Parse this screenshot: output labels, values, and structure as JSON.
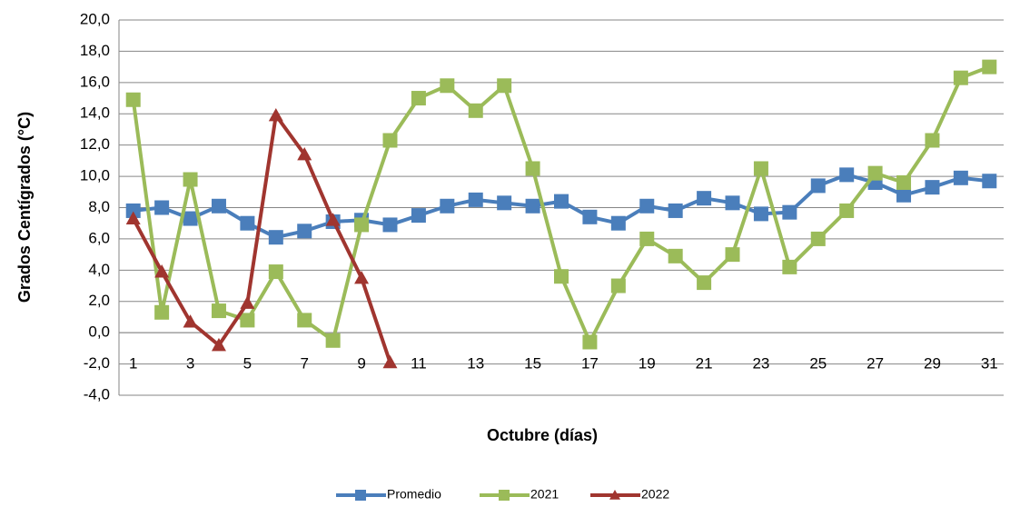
{
  "chart_data": {
    "type": "line",
    "y_label": "Grados Centígrados (°C)",
    "x_label": "Octubre (días)",
    "x": [
      1,
      2,
      3,
      4,
      5,
      6,
      7,
      8,
      9,
      10,
      11,
      12,
      13,
      14,
      15,
      16,
      17,
      18,
      19,
      20,
      21,
      22,
      23,
      24,
      25,
      26,
      27,
      28,
      29,
      30,
      31
    ],
    "xlim": [
      0.5,
      31.5
    ],
    "xticks": [
      1,
      3,
      5,
      7,
      9,
      11,
      13,
      15,
      17,
      19,
      21,
      23,
      25,
      27,
      29,
      31
    ],
    "ylim": [
      -4,
      20
    ],
    "yticks": [
      {
        "value": -4,
        "label": "-4,0"
      },
      {
        "value": -2,
        "label": "-2,0"
      },
      {
        "value": 0,
        "label": "0,0"
      },
      {
        "value": 2,
        "label": "2,0"
      },
      {
        "value": 4,
        "label": "4,0"
      },
      {
        "value": 6,
        "label": "6,0"
      },
      {
        "value": 8,
        "label": "8,0"
      },
      {
        "value": 10,
        "label": "10,0"
      },
      {
        "value": 12,
        "label": "12,0"
      },
      {
        "value": 14,
        "label": "14,0"
      },
      {
        "value": 16,
        "label": "16,0"
      },
      {
        "value": 18,
        "label": "18,0"
      },
      {
        "value": 20,
        "label": "20,0"
      }
    ],
    "grid": true,
    "legend": "bottom",
    "series": [
      {
        "name": "Promedio",
        "color": "#4a7ebb",
        "marker": "square",
        "values": [
          7.8,
          8.0,
          7.3,
          8.1,
          7.0,
          6.1,
          6.5,
          7.1,
          7.2,
          6.9,
          7.5,
          8.1,
          8.5,
          8.3,
          8.1,
          8.4,
          7.4,
          7.0,
          8.1,
          7.8,
          8.6,
          8.3,
          7.6,
          7.7,
          9.4,
          10.1,
          9.6,
          8.8,
          9.3,
          9.9,
          9.7
        ]
      },
      {
        "name": "2021",
        "color": "#9bbb59",
        "marker": "square",
        "values": [
          14.9,
          1.3,
          9.8,
          1.4,
          0.8,
          3.9,
          0.8,
          -0.5,
          6.9,
          12.3,
          15.0,
          15.8,
          14.2,
          15.8,
          10.5,
          3.6,
          -0.6,
          3.0,
          6.0,
          4.9,
          3.2,
          5.0,
          10.5,
          4.2,
          6.0,
          7.8,
          10.2,
          9.6,
          12.3,
          16.3,
          17.0
        ]
      },
      {
        "name": "2022",
        "color": "#a0352f",
        "marker": "triangle",
        "values": [
          7.3,
          3.9,
          0.7,
          -0.8,
          1.9,
          13.9,
          11.4,
          7.2,
          3.5,
          -1.9,
          null,
          null,
          null,
          null,
          null,
          null,
          null,
          null,
          null,
          null,
          null,
          null,
          null,
          null,
          null,
          null,
          null,
          null,
          null,
          null,
          null
        ]
      }
    ]
  }
}
